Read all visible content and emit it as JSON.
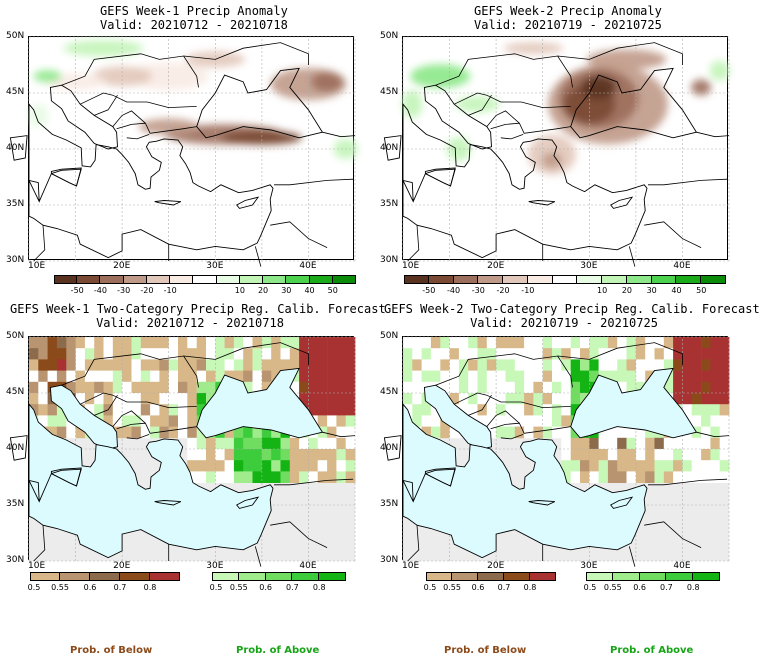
{
  "panels": [
    {
      "title1": "GEFS Week-1 Precip Anomaly",
      "title2": "Valid: 20210712 - 20210718"
    },
    {
      "title1": "GEFS Week-2 Precip Anomaly",
      "title2": "Valid: 20210719 - 20210725"
    },
    {
      "title1": "GEFS Week-1 Two-Category Precip Reg. Calib. Forecast",
      "title2": "Valid: 20210712 - 20210718"
    },
    {
      "title1": "GEFS Week-2 Two-Category Precip Reg. Calib. Forecast",
      "title2": "Valid: 20210719 - 20210725"
    }
  ],
  "axes": {
    "lat": [
      "50N",
      "45N",
      "40N",
      "35N",
      "30N"
    ],
    "lon": [
      "10E",
      "20E",
      "30E",
      "40E"
    ]
  },
  "anomaly_colorbar": {
    "ticks": [
      "-50",
      "-40",
      "-30",
      "-20",
      "-10",
      "10",
      "20",
      "30",
      "40",
      "50"
    ],
    "colors": [
      "#5a3220",
      "#7a4a34",
      "#9c6e5c",
      "#c09a88",
      "#e2c8ba",
      "#f8ebe4",
      "#ffffff",
      "#e8fbe4",
      "#c2f4b8",
      "#8ce888",
      "#4cd24c",
      "#1aaa1a",
      "#0a8c0a"
    ]
  },
  "below_colorbar": {
    "ticks": [
      "0.5",
      "0.55",
      "0.6",
      "0.7",
      "0.8"
    ],
    "colors": [
      "#d8b888",
      "#b89470",
      "#8c6a4c",
      "#8b4a1a",
      "#a83232"
    ]
  },
  "above_colorbar": {
    "ticks": [
      "0.5",
      "0.55",
      "0.6",
      "0.7",
      "0.8"
    ],
    "colors": [
      "#c8f8b8",
      "#a0ec8c",
      "#70dc60",
      "#3ccc3c",
      "#14b414"
    ]
  },
  "footer": {
    "below_label": "Prob. of Below",
    "above_label": "Prob. of Above"
  },
  "colors": {
    "sea": "#dcfbff",
    "nodata": "#ececec",
    "below_text": "#8b4a1a",
    "above_text": "#17a417"
  }
}
